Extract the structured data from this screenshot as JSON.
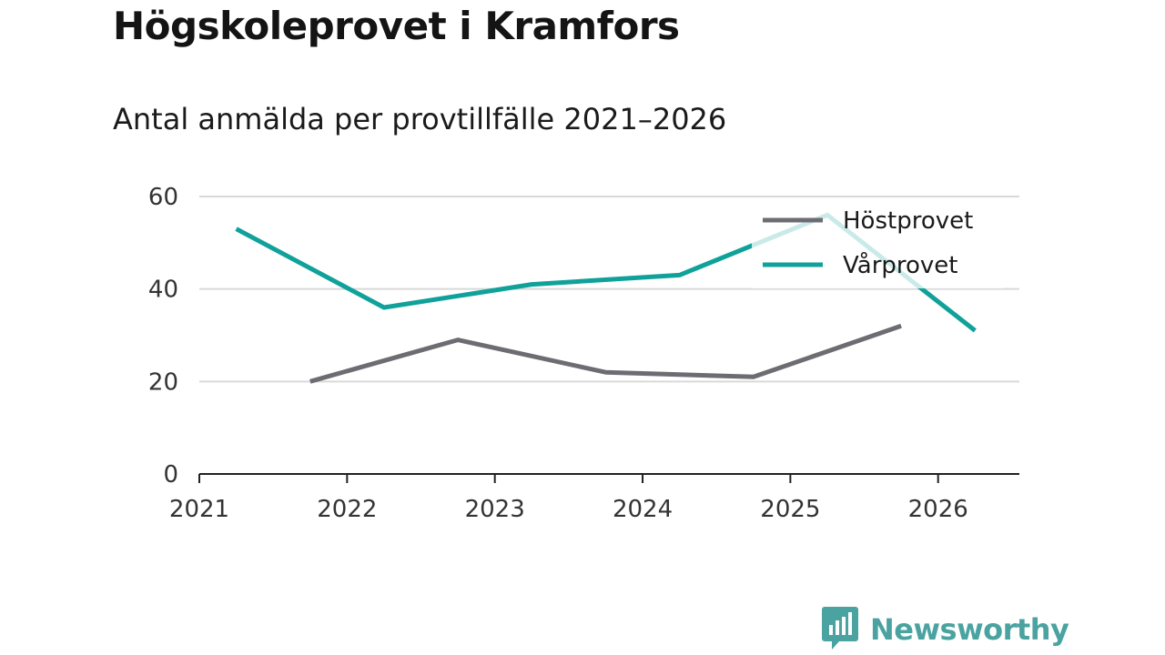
{
  "chart_data": {
    "type": "line",
    "title": "Högskoleprovet i Kramfors",
    "subtitle": "Antal anmälda per provtillfälle 2021–2026",
    "xlabel": "",
    "ylabel": "",
    "xlim": [
      2021,
      2026.55
    ],
    "ylim": [
      0,
      60
    ],
    "x_ticks": [
      2021,
      2022,
      2023,
      2024,
      2025,
      2026
    ],
    "x_tick_labels": [
      "2021",
      "2022",
      "2023",
      "2024",
      "2025",
      "2026"
    ],
    "y_ticks": [
      0,
      20,
      40,
      60
    ],
    "y_tick_labels": [
      "0",
      "20",
      "40",
      "60"
    ],
    "grid": true,
    "legend": "top-right",
    "series": [
      {
        "name": "Höstprovet",
        "color": "#6e6c73",
        "x": [
          2021.75,
          2022.75,
          2023.75,
          2024.75,
          2025.75
        ],
        "values": [
          20,
          29,
          22,
          21,
          32
        ]
      },
      {
        "name": "Vårprovet",
        "color": "#10a19a",
        "x": [
          2021.25,
          2022.25,
          2023.25,
          2024.25,
          2025.25,
          2026.25
        ],
        "values": [
          53,
          36,
          41,
          43,
          56,
          31
        ]
      }
    ]
  },
  "brand": {
    "name": "Newsworthy",
    "icon": "newsworthy-logo-icon",
    "color": "#4aa3a0"
  }
}
